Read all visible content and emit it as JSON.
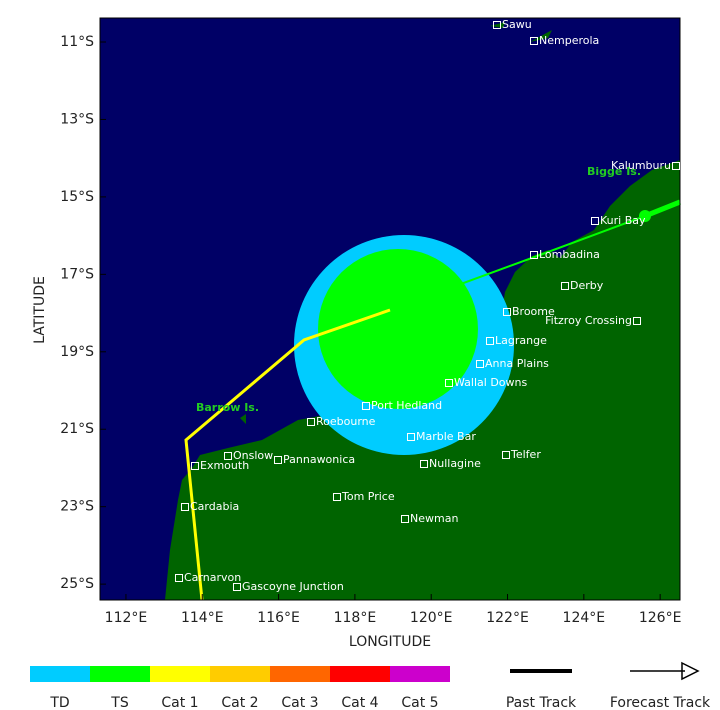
{
  "map": {
    "xlabel": "LONGITUDE",
    "ylabel": "LATITUDE",
    "xlim": [
      111.32,
      126.52
    ],
    "ylim": [
      -25.41,
      -10.38
    ],
    "xticks": [
      {
        "value": 112,
        "label": "112°E"
      },
      {
        "value": 114,
        "label": "114°E"
      },
      {
        "value": 116,
        "label": "116°E"
      },
      {
        "value": 118,
        "label": "118°E"
      },
      {
        "value": 120,
        "label": "120°E"
      },
      {
        "value": 122,
        "label": "122°E"
      },
      {
        "value": 124,
        "label": "124°E"
      },
      {
        "value": 126,
        "label": "126°E"
      }
    ],
    "yticks": [
      {
        "value": -11,
        "label": "11°S"
      },
      {
        "value": -13,
        "label": "13°S"
      },
      {
        "value": -15,
        "label": "15°S"
      },
      {
        "value": -17,
        "label": "17°S"
      },
      {
        "value": -19,
        "label": "19°S"
      },
      {
        "value": -21,
        "label": "21°S"
      },
      {
        "value": -23,
        "label": "23°S"
      },
      {
        "value": -25,
        "label": "25°S"
      }
    ],
    "places": [
      "Sawu",
      "Nemperola",
      "Kalumburu",
      "Kuri Bay",
      "Lombadina",
      "Derby",
      "Broome",
      "Fitzroy Crossing",
      "Lagrange",
      "Anna Plains",
      "Wallal Downs",
      "Port Hedland",
      "Roebourne",
      "Marble Bar",
      "Onslow",
      "Exmouth",
      "Pannawonica",
      "Telfer",
      "Nullagine",
      "Tom Price",
      "Newman",
      "Cardabia",
      "Carnarvon",
      "Gascoyne Junction"
    ],
    "islands": [
      "Bigge Is.",
      "Barrow Is."
    ],
    "legend": {
      "categories": [
        {
          "label": "TD",
          "color": "#00ccff"
        },
        {
          "label": "TS",
          "color": "#00ff00"
        },
        {
          "label": "Cat 1",
          "color": "#ffff00"
        },
        {
          "label": "Cat 2",
          "color": "#ffcc00"
        },
        {
          "label": "Cat 3",
          "color": "#ff6600"
        },
        {
          "label": "Cat 4",
          "color": "#ff0000"
        },
        {
          "label": "Cat 5",
          "color": "#cc00cc"
        }
      ],
      "past_track": "Past Track",
      "forecast_track": "Forecast Track"
    }
  }
}
